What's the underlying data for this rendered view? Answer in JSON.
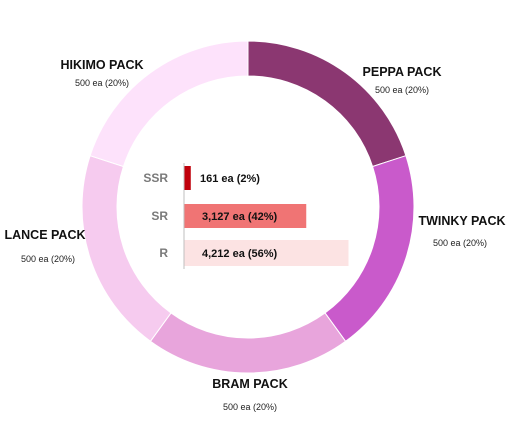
{
  "chart_data": [
    {
      "type": "pie",
      "variant": "donut",
      "slices": [
        {
          "name": "PEPPA PACK",
          "value": 500,
          "label": "500 ea (20%)",
          "color": "#8b3771"
        },
        {
          "name": "TWINKY PACK",
          "value": 500,
          "label": "500 ea (20%)",
          "color": "#c95acb"
        },
        {
          "name": "BRAM PACK",
          "value": 500,
          "label": "500 ea (20%)",
          "color": "#e8a5dc"
        },
        {
          "name": "LANCE PACK",
          "value": 500,
          "label": "500 ea (20%)",
          "color": "#f6cbef"
        },
        {
          "name": "HIKIMO PACK",
          "value": 500,
          "label": "500 ea (20%)",
          "color": "#fde2fb"
        }
      ]
    },
    {
      "type": "bar",
      "orientation": "horizontal",
      "categories": [
        "SSR",
        "SR",
        "R"
      ],
      "values": [
        161,
        3127,
        4212
      ],
      "labels": [
        "161 ea (2%)",
        "3,127 ea (42%)",
        "4,212 ea (56%)"
      ],
      "colors": [
        "#c0000b",
        "#f07474",
        "#fce3e3"
      ]
    }
  ]
}
